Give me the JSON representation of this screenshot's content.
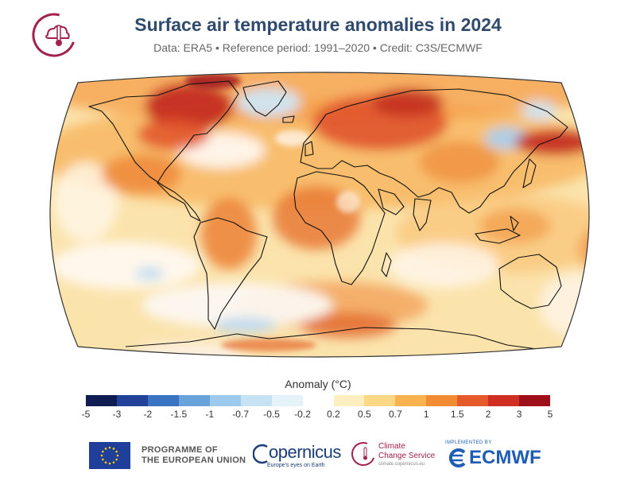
{
  "header": {
    "title": "Surface air temperature anomalies in 2024",
    "subtitle": "Data: ERA5 • Reference period: 1991–2020 • Credit: C3S/ECMWF"
  },
  "map": {
    "projection": "robinson",
    "variable": "surface air temperature anomaly",
    "ocean_base_color": "#fbe6b6",
    "coastline_color": "#111111"
  },
  "legend": {
    "title": "Anomaly (°C)",
    "ticks": [
      "-5",
      "-3",
      "-2",
      "-1.5",
      "-1",
      "-0.7",
      "-0.5",
      "-0.2",
      "0.2",
      "0.5",
      "0.7",
      "1",
      "1.5",
      "2",
      "3",
      "5"
    ],
    "colors": [
      "#0f1c52",
      "#22429a",
      "#3a73c1",
      "#6aa3da",
      "#9cc9ec",
      "#c7e2f4",
      "#e6f2fa",
      "#ffffff",
      "#fdeec0",
      "#fcd784",
      "#f8b24e",
      "#f28c33",
      "#e6592a",
      "#cf2f23",
      "#9e0f1a"
    ]
  },
  "footer": {
    "eu_line1": "PROGRAMME OF",
    "eu_line2": "THE EUROPEAN UNION",
    "copernicus": "opernicus",
    "copernicus_sub": "Europe's eyes on Earth",
    "c3s_line1": "Climate",
    "c3s_line2": "Change Service",
    "c3s_url": "climate.copernicus.eu",
    "ecmwf_top": "IMPLEMENTED BY",
    "ecmwf": "ECMWF"
  },
  "colors": {
    "title": "#2f4a6d",
    "c3s": "#a3214f",
    "ecmwf": "#1f5db5",
    "eu_blue": "#1f3f9a",
    "eu_star": "#ffcc00"
  }
}
